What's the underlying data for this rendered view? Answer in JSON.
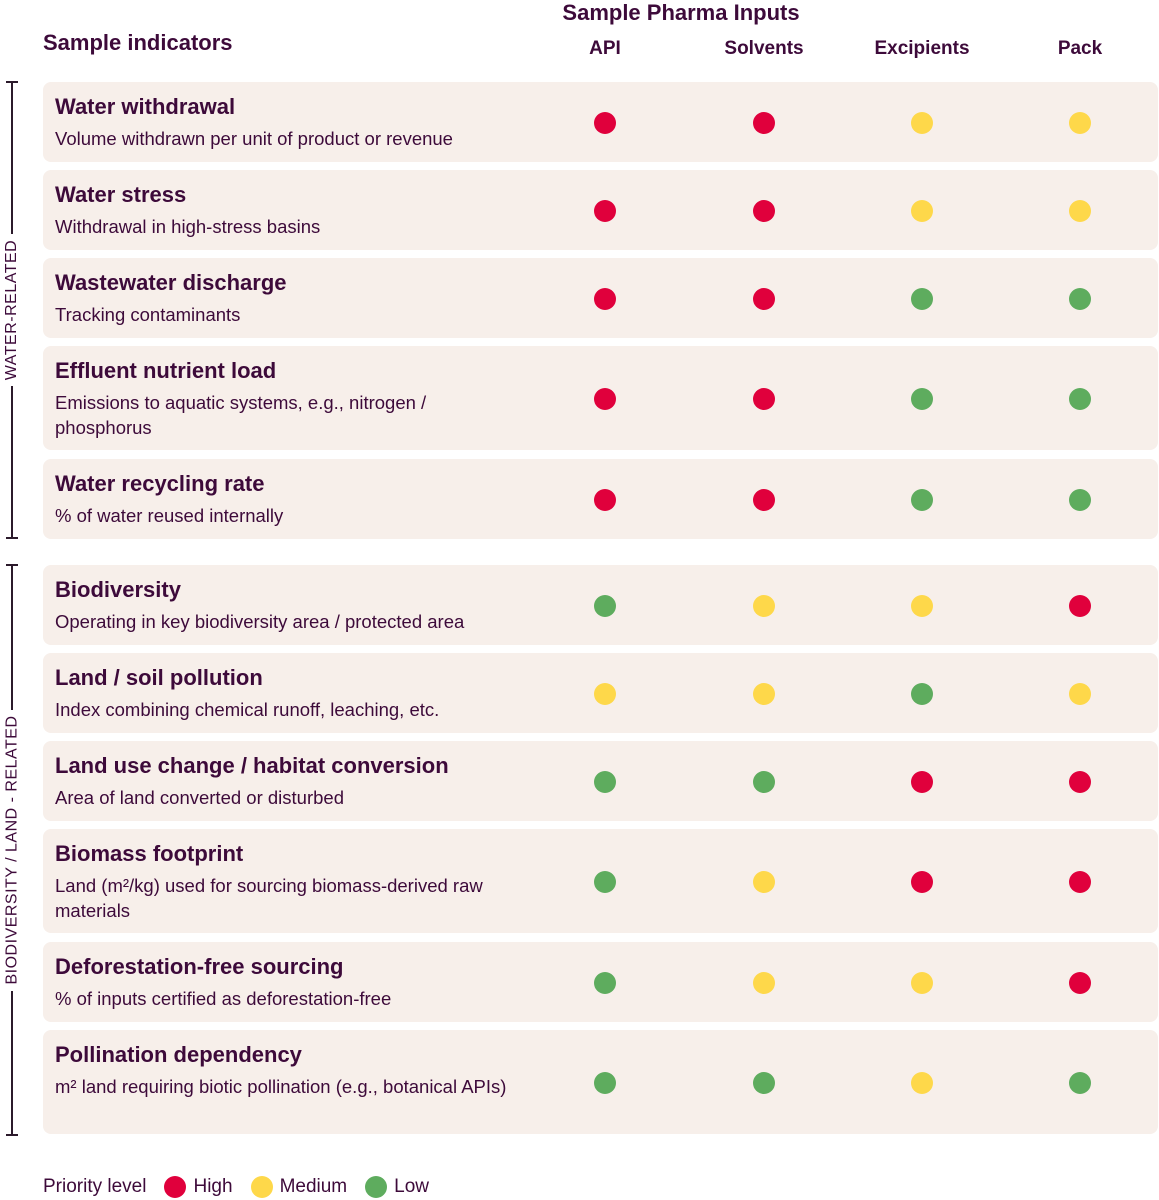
{
  "header": {
    "group_title": "Sample Pharma Inputs",
    "indicators_title": "Sample indicators"
  },
  "columns": [
    "API",
    "Solvents",
    "Excipients",
    "Pack"
  ],
  "colors": {
    "high": "#e0003c",
    "medium": "#fed84a",
    "low": "#5eac5e"
  },
  "sections": [
    {
      "label": "WATER-RELATED"
    },
    {
      "label": "BIODIVERSITY / LAND - RELATED"
    }
  ],
  "rows": [
    {
      "title": "Water withdrawal",
      "subtitle": "Volume withdrawn per unit of product or revenue",
      "levels": [
        "High",
        "High",
        "Medium",
        "Medium"
      ]
    },
    {
      "title": "Water stress",
      "subtitle": "Withdrawal in high-stress basins",
      "levels": [
        "High",
        "High",
        "Medium",
        "Medium"
      ]
    },
    {
      "title": "Wastewater discharge",
      "subtitle": "Tracking contaminants",
      "levels": [
        "High",
        "High",
        "Low",
        "Low"
      ]
    },
    {
      "title": "Effluent nutrient load",
      "subtitle": "Emissions to aquatic systems, e.g., nitrogen / phosphorus",
      "levels": [
        "High",
        "High",
        "Low",
        "Low"
      ]
    },
    {
      "title": "Water recycling rate",
      "subtitle": "% of water reused internally",
      "levels": [
        "High",
        "High",
        "Low",
        "Low"
      ]
    },
    {
      "title": "Biodiversity",
      "subtitle": "Operating in key biodiversity area / protected area",
      "levels": [
        "Low",
        "Medium",
        "Medium",
        "High"
      ]
    },
    {
      "title": "Land / soil pollution",
      "subtitle": "Index combining chemical runoff, leaching, etc.",
      "levels": [
        "Medium",
        "Medium",
        "Low",
        "Medium"
      ]
    },
    {
      "title": "Land use change / habitat conversion",
      "subtitle": "Area of land converted or disturbed",
      "levels": [
        "Low",
        "Low",
        "High",
        "High"
      ]
    },
    {
      "title": "Biomass footprint",
      "subtitle": "Land (m²/kg) used for sourcing biomass-derived raw materials",
      "levels": [
        "Low",
        "Medium",
        "High",
        "High"
      ]
    },
    {
      "title": "Deforestation-free sourcing",
      "subtitle": "% of inputs certified as deforestation-free",
      "levels": [
        "Low",
        "Medium",
        "Medium",
        "High"
      ]
    },
    {
      "title": "Pollination dependency",
      "subtitle": "m² land requiring biotic pollination (e.g., botanical APIs)",
      "levels": [
        "Low",
        "Low",
        "Medium",
        "Low"
      ]
    }
  ],
  "legend": {
    "label": "Priority level",
    "items": [
      {
        "key": "high",
        "label": "High"
      },
      {
        "key": "medium",
        "label": "Medium"
      },
      {
        "key": "low",
        "label": "Low"
      }
    ]
  }
}
